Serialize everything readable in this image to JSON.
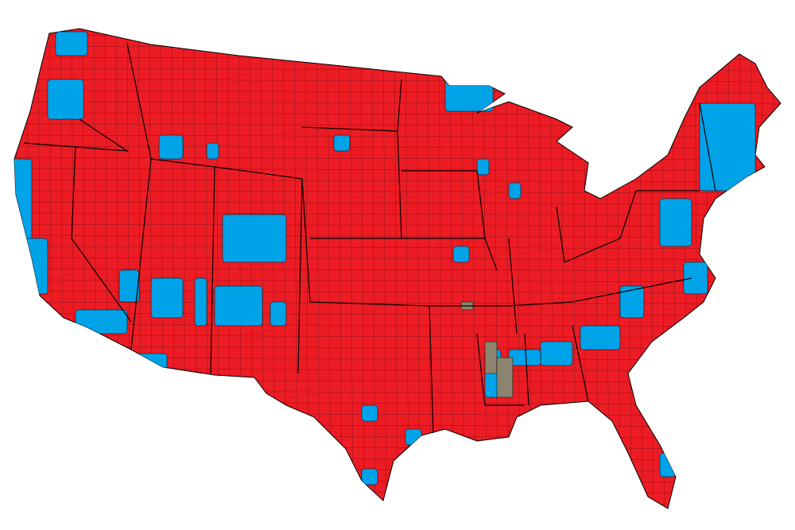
{
  "map": {
    "region": "contiguous-united-states",
    "subdivision": "counties",
    "colors": {
      "background": "#ffffff",
      "red": "#ED1C24",
      "blue": "#00A2E8",
      "gray": "#8C8470",
      "borders": "#000000"
    },
    "dominant_color": "red",
    "blue_areas": [
      "west-coast",
      "new-england",
      "urban-counties",
      "southwest-reservations",
      "black-belt-south"
    ],
    "gray_areas": [
      "mississippi-delta"
    ]
  }
}
